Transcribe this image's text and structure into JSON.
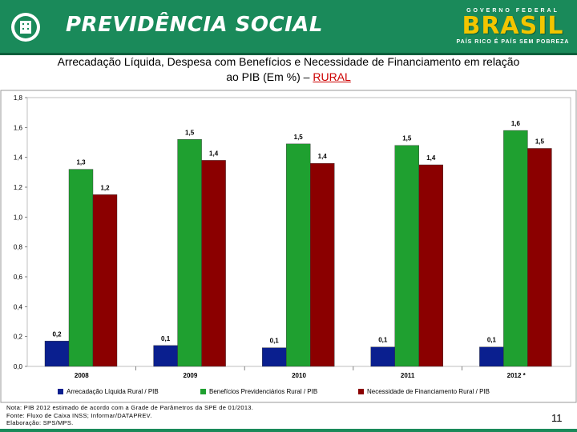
{
  "header": {
    "brand": "PREVIDÊNCIA SOCIAL",
    "gov_label": "GOVERNO FEDERAL",
    "gov_brasil": "BRASIL",
    "gov_slogan": "PAÍS RICO É PAÍS SEM POBREZA"
  },
  "title": {
    "line1": "Arrecadação Líquida, Despesa com Benefícios e Necessidade de Financiamento em relação",
    "line2": "ao PIB (Em %) – ",
    "accent": "RURAL"
  },
  "chart_data": {
    "type": "bar",
    "title": "Arrecadação Líquida, Despesa com Benefícios e Necessidade de Financiamento em relação ao PIB (Em %) – RURAL",
    "categories": [
      "2008",
      "2009",
      "2010",
      "2011",
      "2012 *"
    ],
    "series": [
      {
        "name": "Arrecadação Líquida Rural / PIB",
        "color": "#0a1f8f",
        "values": [
          0.17,
          0.14,
          0.125,
          0.13,
          0.13
        ],
        "labels": [
          "0,2",
          "0,1",
          "0,1",
          "0,1",
          "0,1"
        ]
      },
      {
        "name": "Benefícios Previdenciários Rural / PIB",
        "color": "#1fa030",
        "values": [
          1.32,
          1.52,
          1.49,
          1.48,
          1.58
        ],
        "labels": [
          "1,3",
          "1,5",
          "1,5",
          "1,5",
          "1,6"
        ]
      },
      {
        "name": "Necessidade de Financiamento Rural / PIB",
        "color": "#8b0000",
        "values": [
          1.15,
          1.38,
          1.36,
          1.35,
          1.46
        ],
        "labels": [
          "1,2",
          "1,4",
          "1,4",
          "1,4",
          "1,5"
        ]
      }
    ],
    "ylim": [
      0,
      1.8
    ],
    "yticks": [
      0,
      0.2,
      0.4,
      0.6,
      0.8,
      1.0,
      1.2,
      1.4,
      1.6,
      1.8
    ],
    "ytick_labels": [
      "0,0",
      "0,2",
      "0,4",
      "0,6",
      "0,8",
      "1,0",
      "1,2",
      "1,4",
      "1,6",
      "1,8"
    ],
    "xlabel": "",
    "ylabel": "",
    "legend": "bottom"
  },
  "notes": {
    "line1": "Nota: PIB 2012 estimado de acordo com a Grade de Parâmetros da SPE de 01/2013.",
    "line2": "Fonte: Fluxo de Caixa INSS; Informar/DATAPREV.",
    "line3": "Elaboração: SPS/MPS."
  },
  "page_number": "11",
  "colors": {
    "header_green": "#1a8a5a",
    "accent_red": "#cc0000"
  }
}
